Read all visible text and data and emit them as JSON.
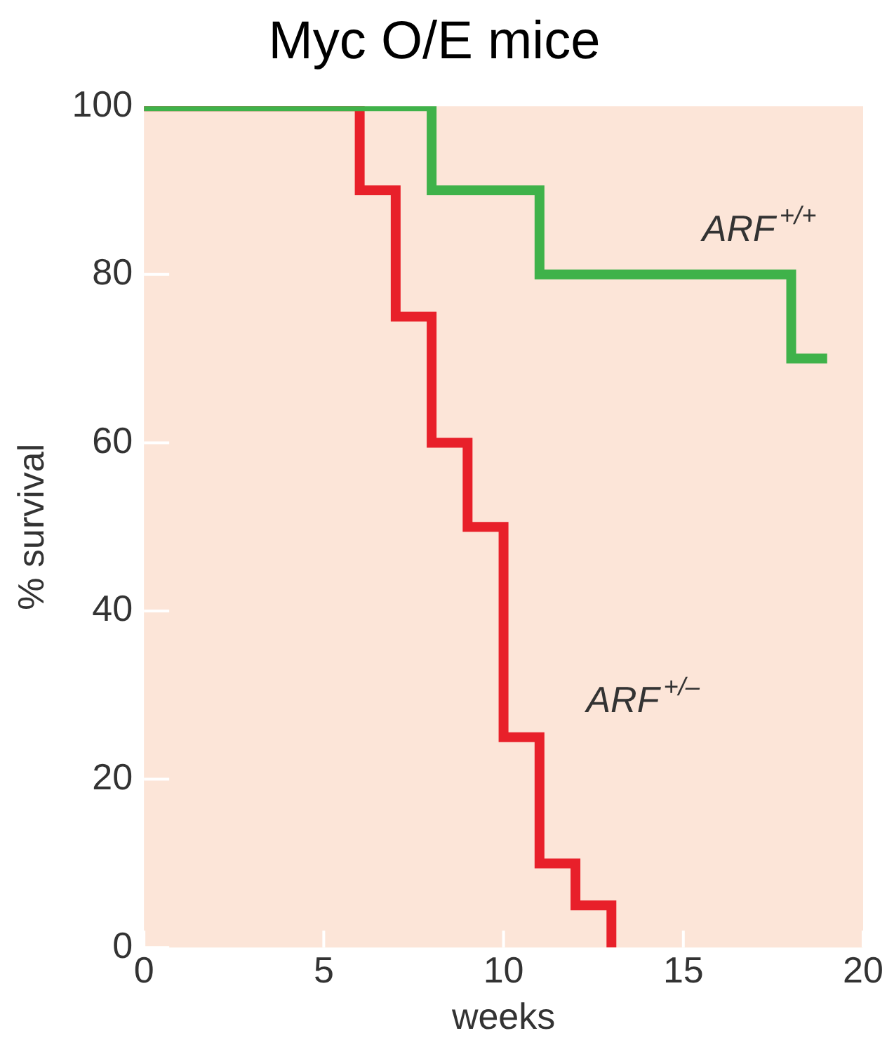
{
  "chart_data": {
    "type": "step",
    "title": "Myc O/E mice",
    "xlabel": "weeks",
    "ylabel": "% survival",
    "xlim": [
      0,
      20
    ],
    "xticks": [
      0,
      5,
      10,
      15,
      20
    ],
    "ylim": [
      0,
      100
    ],
    "yticks": [
      0,
      20,
      40,
      60,
      80,
      100
    ],
    "grid": false,
    "legend": false,
    "marker": "none",
    "line_style": "solid",
    "series": [
      {
        "name": "ARF$^{+/+}$",
        "color": "#3fb24a",
        "x": [
          0,
          8,
          11,
          18,
          19
        ],
        "values": [
          100,
          90,
          80,
          70,
          70
        ]
      },
      {
        "name": "ARF$^{+/–}$",
        "color": "#e8202a",
        "x": [
          0,
          6,
          7,
          8,
          9,
          10,
          11,
          12,
          13
        ],
        "values": [
          100,
          90,
          75,
          60,
          50,
          25,
          10,
          5,
          0
        ]
      }
    ]
  }
}
